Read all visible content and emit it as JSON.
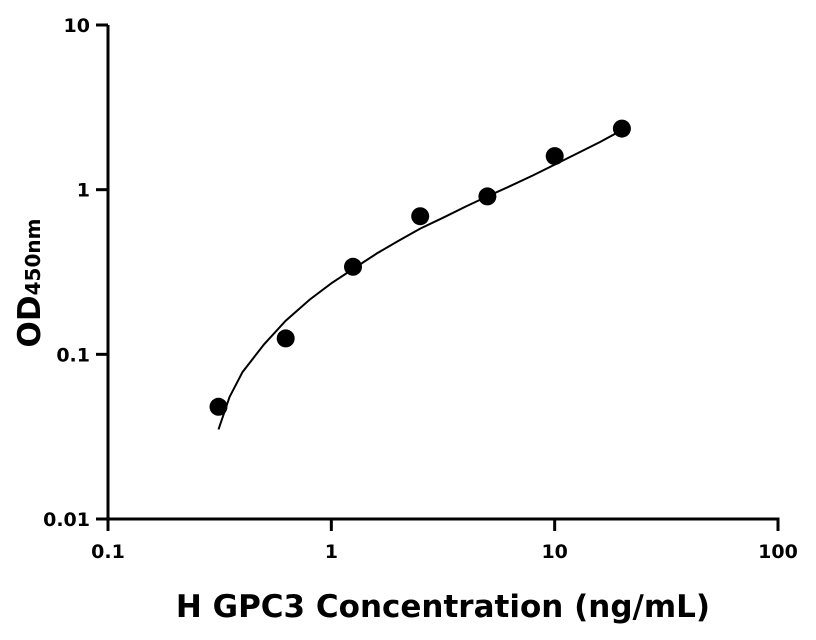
{
  "chart_data": {
    "type": "scatter",
    "xscale": "log",
    "yscale": "log",
    "xlim": [
      0.1,
      100
    ],
    "ylim": [
      0.01,
      10
    ],
    "xlabel": "H GPC3 Concentration (ng/mL)",
    "ylabel": {
      "main": "OD",
      "subscript": "450nm"
    },
    "x_ticks": [
      {
        "value": 0.1,
        "label": "0.1"
      },
      {
        "value": 1,
        "label": "1"
      },
      {
        "value": 10,
        "label": "10"
      },
      {
        "value": 100,
        "label": "100"
      }
    ],
    "y_ticks": [
      {
        "value": 0.01,
        "label": "0.01"
      },
      {
        "value": 0.1,
        "label": "0.1"
      },
      {
        "value": 1,
        "label": "1"
      },
      {
        "value": 10,
        "label": "10"
      }
    ],
    "series": [
      {
        "points": [
          {
            "x": 0.3125,
            "y": 0.048
          },
          {
            "x": 0.625,
            "y": 0.125
          },
          {
            "x": 1.25,
            "y": 0.34
          },
          {
            "x": 2.5,
            "y": 0.69
          },
          {
            "x": 5,
            "y": 0.91
          },
          {
            "x": 10,
            "y": 1.6
          },
          {
            "x": 20,
            "y": 2.35
          }
        ],
        "fit_curve": [
          {
            "x": 0.3125,
            "y": 0.035
          },
          {
            "x": 0.35,
            "y": 0.055
          },
          {
            "x": 0.4,
            "y": 0.078
          },
          {
            "x": 0.5,
            "y": 0.115
          },
          {
            "x": 0.625,
            "y": 0.16
          },
          {
            "x": 0.8,
            "y": 0.215
          },
          {
            "x": 1.0,
            "y": 0.27
          },
          {
            "x": 1.25,
            "y": 0.33
          },
          {
            "x": 1.6,
            "y": 0.41
          },
          {
            "x": 2.0,
            "y": 0.49
          },
          {
            "x": 2.5,
            "y": 0.58
          },
          {
            "x": 3.2,
            "y": 0.68
          },
          {
            "x": 4.0,
            "y": 0.79
          },
          {
            "x": 5.0,
            "y": 0.91
          },
          {
            "x": 6.3,
            "y": 1.05
          },
          {
            "x": 8.0,
            "y": 1.22
          },
          {
            "x": 10,
            "y": 1.42
          },
          {
            "x": 12.5,
            "y": 1.65
          },
          {
            "x": 16,
            "y": 1.95
          },
          {
            "x": 20,
            "y": 2.3
          }
        ],
        "color": "#000000"
      }
    ],
    "legend": "none",
    "grid": false
  }
}
